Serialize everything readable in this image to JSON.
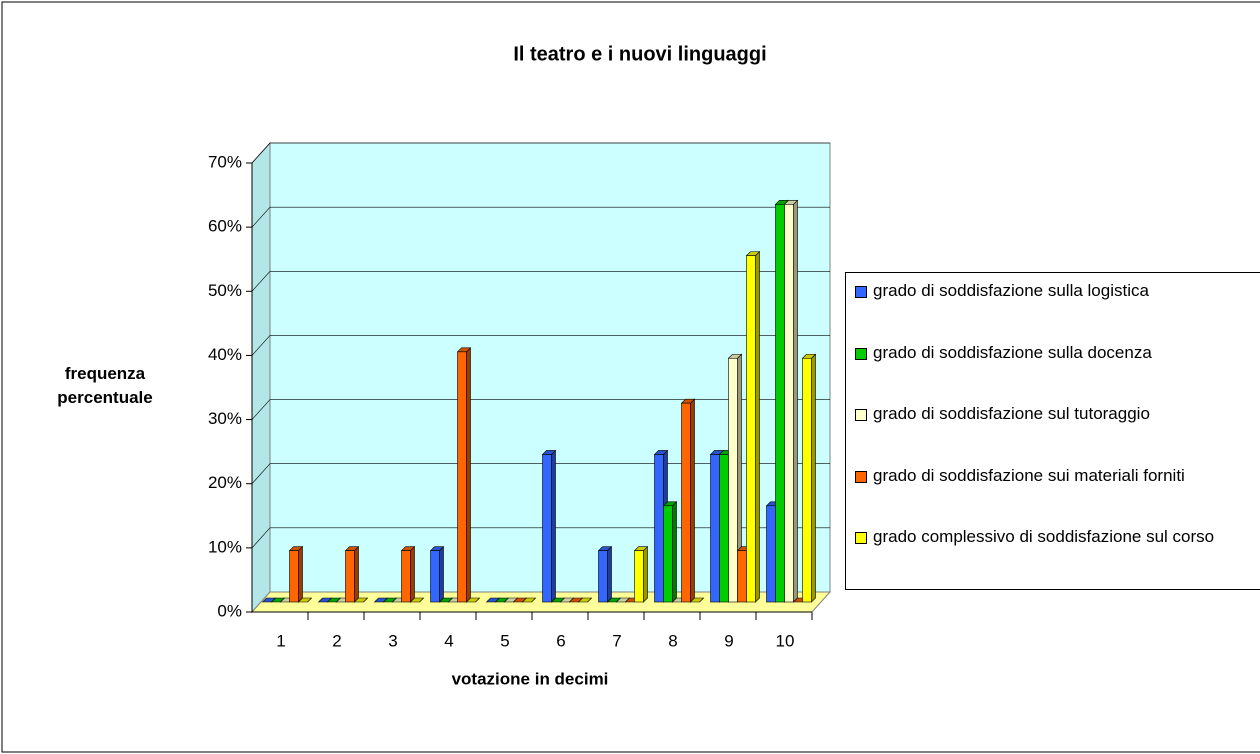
{
  "chart_data": {
    "type": "bar3d",
    "title": "Il teatro e i nuovi linguaggi",
    "x_label": "votazione in decimi",
    "y_label": "frequenza percentuale",
    "categories": [
      "1",
      "2",
      "3",
      "4",
      "5",
      "6",
      "7",
      "8",
      "9",
      "10"
    ],
    "series": [
      {
        "name": "grado di soddisfazione sulla logistica",
        "color": "#3366ff",
        "values": [
          0,
          0,
          0,
          8,
          0,
          23,
          8,
          23,
          23,
          15
        ]
      },
      {
        "name": "grado di soddisfazione sulla docenza",
        "color": "#00cc00",
        "values": [
          0,
          0,
          0,
          0,
          0,
          0,
          0,
          15,
          23,
          62
        ]
      },
      {
        "name": "grado di soddisfazione sul tutoraggio",
        "color": "#ffffcc",
        "values": [
          0,
          0,
          0,
          0,
          0,
          0,
          0,
          0,
          38,
          62
        ]
      },
      {
        "name": "grado di soddisfazione sui materiali forniti",
        "color": "#ff6600",
        "values": [
          8,
          8,
          8,
          39,
          0,
          0,
          0,
          31,
          8,
          0
        ]
      },
      {
        "name": "grado complessivo di soddisfazione sul corso",
        "color": "#ffff00",
        "values": [
          0,
          0,
          0,
          0,
          0,
          0,
          8,
          0,
          54,
          38
        ]
      }
    ],
    "ylim": [
      0,
      70
    ],
    "yticks": [
      {
        "value": 0,
        "label": "0%"
      },
      {
        "value": 10,
        "label": "10%"
      },
      {
        "value": 20,
        "label": "20%"
      },
      {
        "value": 30,
        "label": "30%"
      },
      {
        "value": 40,
        "label": "40%"
      },
      {
        "value": 50,
        "label": "50%"
      },
      {
        "value": 60,
        "label": "60%"
      },
      {
        "value": 70,
        "label": "70%"
      }
    ],
    "grid": true,
    "legend": "right"
  }
}
